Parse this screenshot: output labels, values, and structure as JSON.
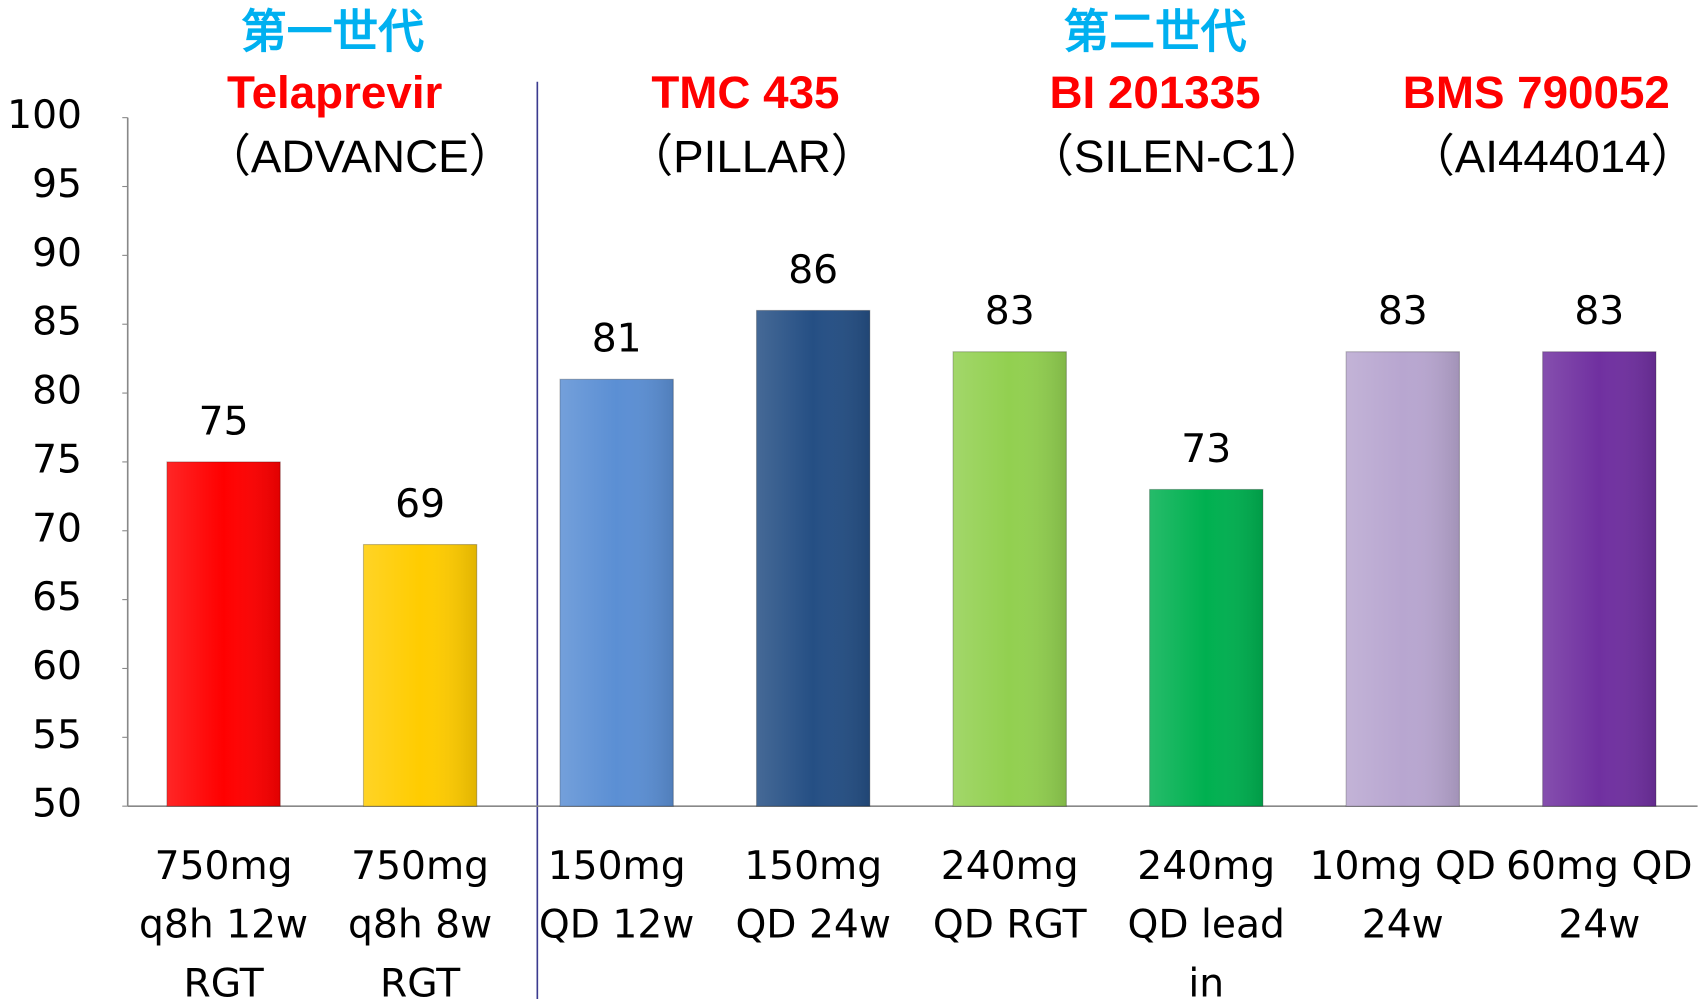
{
  "chart_data": {
    "type": "bar",
    "generations": [
      "第一世代",
      "第二世代"
    ],
    "drugs": [
      "Telaprevir",
      "TMC 435",
      "BI 201335",
      "BMS 790052"
    ],
    "trials": [
      "（ADVANCE）",
      "（PILLAR）",
      "（SILEN-C1）",
      "（AI444014）"
    ],
    "categories": [
      [
        "750mg",
        "q8h 12w",
        "RGT"
      ],
      [
        "750mg",
        "q8h 8w",
        "RGT"
      ],
      [
        "150mg",
        "QD 12w"
      ],
      [
        "150mg",
        "QD 24w"
      ],
      [
        "240mg",
        "QD RGT"
      ],
      [
        "240mg",
        "QD lead",
        "in"
      ],
      [
        "10mg QD",
        "24w"
      ],
      [
        "60mg QD",
        "24w"
      ]
    ],
    "values": [
      75,
      69,
      81,
      86,
      83,
      73,
      83,
      83
    ],
    "colors": [
      "#ff0000",
      "#ffcc00",
      "#5b8fd4",
      "#254f84",
      "#92d050",
      "#00b050",
      "#b8a6d0",
      "#7030a0"
    ],
    "ylim": [
      50,
      100
    ],
    "yticks": [
      50,
      55,
      60,
      65,
      70,
      75,
      80,
      85,
      90,
      95,
      100
    ],
    "grid": false
  }
}
